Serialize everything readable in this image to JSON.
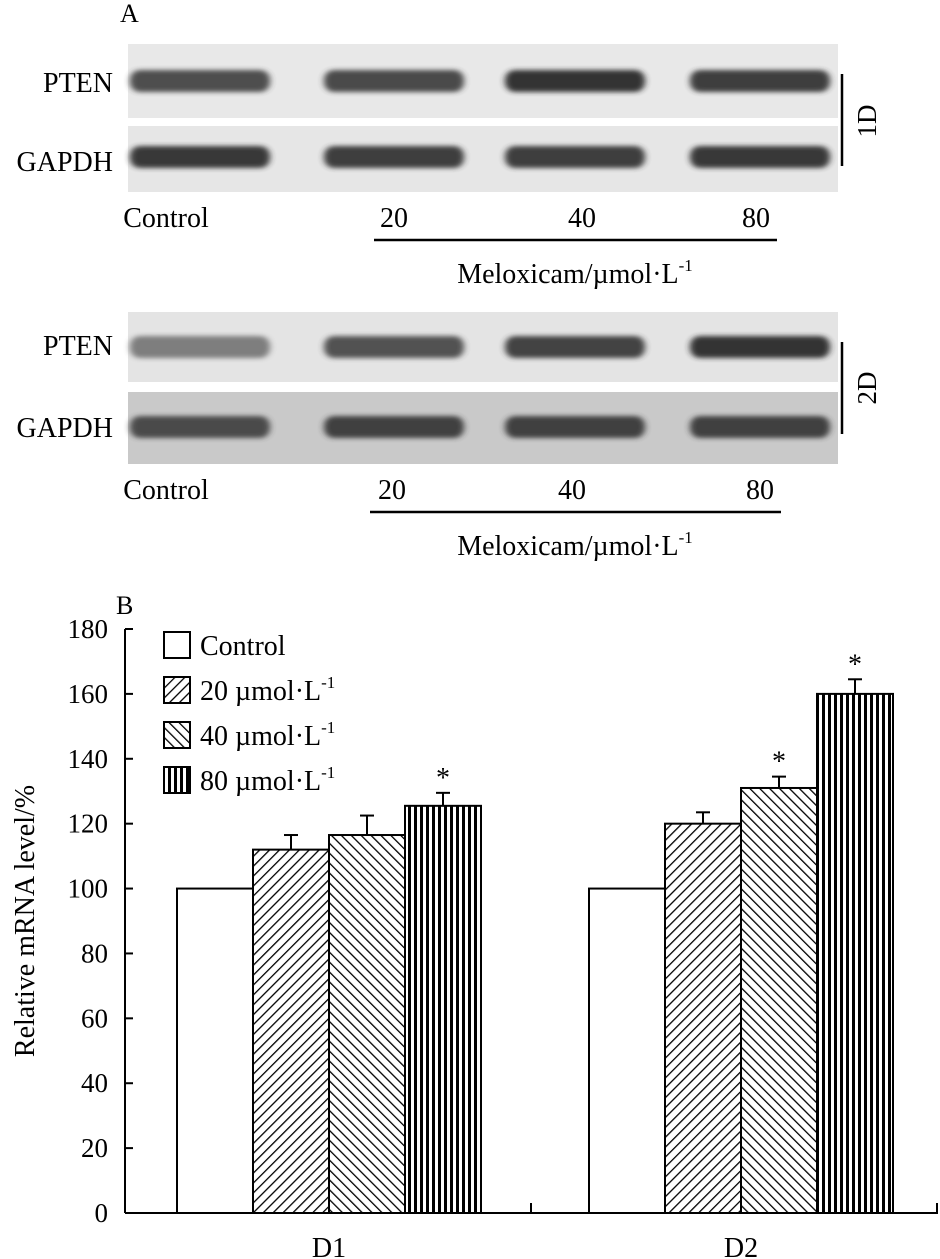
{
  "panel_a": {
    "label": "A",
    "blots": [
      {
        "day_label": "1D",
        "rows": [
          {
            "name": "PTEN",
            "intensity": [
              0.72,
              0.74,
              0.85,
              0.8
            ]
          },
          {
            "name": "GAPDH",
            "intensity": [
              0.82,
              0.8,
              0.8,
              0.82
            ]
          }
        ],
        "lanes": [
          "Control",
          "20",
          "40",
          "80"
        ],
        "treatment_label": "Meloxicam/µmol·L",
        "treatment_sup": "-1"
      },
      {
        "day_label": "2D",
        "rows": [
          {
            "name": "PTEN",
            "intensity": [
              0.45,
              0.7,
              0.78,
              0.85
            ]
          },
          {
            "name": "GAPDH",
            "intensity": [
              0.72,
              0.78,
              0.78,
              0.78
            ]
          }
        ],
        "lanes": [
          "Control",
          "20",
          "40",
          "80"
        ],
        "treatment_label": "Meloxicam/µmol·L",
        "treatment_sup": "-1"
      }
    ]
  },
  "panel_b": {
    "label": "B"
  },
  "chart_data": {
    "type": "bar",
    "categories": [
      "D1",
      "D2"
    ],
    "ylabel": "Relative mRNA level/%",
    "ylim": [
      0,
      180
    ],
    "yticks": [
      0,
      20,
      40,
      60,
      80,
      100,
      120,
      140,
      160,
      180
    ],
    "legend_position": "top-left",
    "series": [
      {
        "name": "Control",
        "sup": "",
        "pattern": "open",
        "values": [
          100,
          100
        ],
        "errors": [
          0,
          0
        ],
        "significant": [
          false,
          false
        ]
      },
      {
        "name": "20 µmol·L",
        "sup": "-1",
        "pattern": "diag-backslash",
        "values": [
          112,
          120
        ],
        "errors": [
          4.5,
          3.5
        ],
        "significant": [
          false,
          false
        ]
      },
      {
        "name": "40 µmol·L",
        "sup": "-1",
        "pattern": "diag-slash",
        "values": [
          116.5,
          131
        ],
        "errors": [
          6,
          3.5
        ],
        "significant": [
          false,
          true
        ]
      },
      {
        "name": "80 µmol·L",
        "sup": "-1",
        "pattern": "vertical",
        "values": [
          125.5,
          160
        ],
        "errors": [
          4,
          4.5
        ],
        "significant": [
          true,
          true
        ]
      }
    ],
    "significance_mark": "*"
  }
}
